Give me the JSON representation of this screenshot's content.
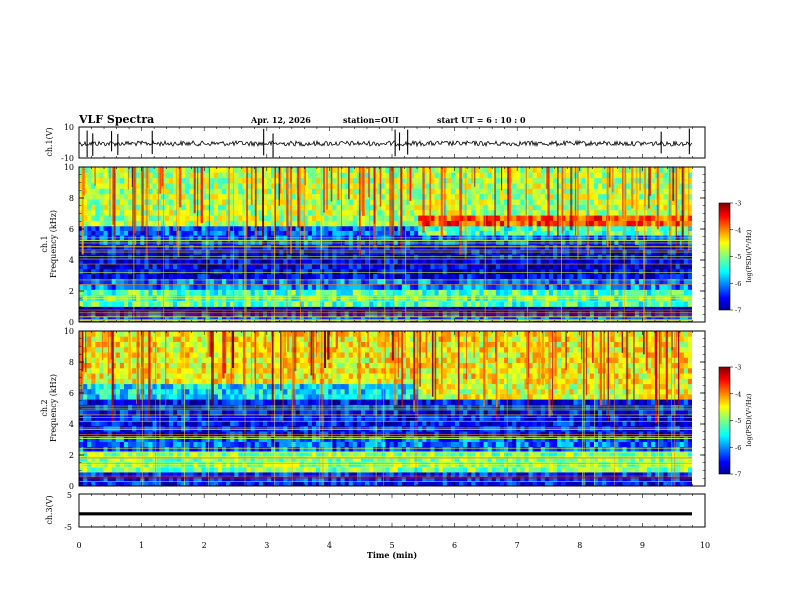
{
  "header": {
    "title": "VLF Spectra",
    "date": "Apr. 12, 2026",
    "station": "station=OUI",
    "start": "start  UT =   6 : 10 : 0"
  },
  "chart_data": [
    {
      "type": "line",
      "name": "ch1-waveform",
      "ylabel": "ch.1(V)",
      "ylim": [
        -10,
        10
      ],
      "yticks": [
        "10",
        "-10"
      ],
      "xlim": [
        0,
        10
      ],
      "description_values": "noisy waveform around 0 V with spikes",
      "spikes_min": [
        0.13,
        0.22,
        0.52,
        0.62,
        1.17,
        2.95,
        3.1,
        5.05,
        5.12,
        5.25,
        9.3,
        9.75
      ]
    },
    {
      "type": "heatmap",
      "name": "ch1-spectrogram",
      "ylabel_line1": "ch.1",
      "ylabel_line2": "Frequency (kHz)",
      "ylim": [
        0,
        10
      ],
      "yticks": [
        "0",
        "2",
        "4",
        "6",
        "8",
        "10"
      ],
      "xlim": [
        0,
        9.8
      ],
      "zlabel": "log(PSD)(V²/Hz)",
      "zlim": [
        -7,
        -3
      ],
      "colorbar_ticks": [
        "-3",
        "-4",
        "-5",
        "-6",
        "-7"
      ],
      "bands_khz": [
        {
          "f0": 0.0,
          "f1": 0.7,
          "level": -6.2
        },
        {
          "f0": 0.7,
          "f1": 1.0,
          "level": -7.0
        },
        {
          "f0": 1.0,
          "f1": 2.1,
          "level": -5.2
        },
        {
          "f0": 2.1,
          "f1": 2.8,
          "level": -6.0
        },
        {
          "f0": 2.8,
          "f1": 5.0,
          "level": -6.6
        },
        {
          "f0": 5.0,
          "f1": 6.2,
          "level": -6.2
        },
        {
          "f0": 6.2,
          "f1": 10.0,
          "level": -4.8
        }
      ]
    },
    {
      "type": "heatmap",
      "name": "ch2-spectrogram",
      "ylabel_line1": "ch.2",
      "ylabel_line2": "Frequency (kHz)",
      "ylim": [
        0,
        10
      ],
      "yticks": [
        "0",
        "2",
        "4",
        "6",
        "8",
        "10"
      ],
      "xlim": [
        0,
        9.8
      ],
      "zlabel": "log(PSD)(V²/Hz)",
      "zlim": [
        -7,
        -3
      ],
      "colorbar_ticks": [
        "-3",
        "-4",
        "-5",
        "-6",
        "-7"
      ],
      "bands_khz": [
        {
          "f0": 0.0,
          "f1": 0.9,
          "level": -6.4
        },
        {
          "f0": 0.9,
          "f1": 2.2,
          "level": -5.0
        },
        {
          "f0": 2.2,
          "f1": 3.2,
          "level": -6.1
        },
        {
          "f0": 3.2,
          "f1": 5.6,
          "level": -6.5
        },
        {
          "f0": 5.6,
          "f1": 6.6,
          "level": -5.6
        },
        {
          "f0": 6.6,
          "f1": 10.0,
          "level": -4.5
        }
      ]
    },
    {
      "type": "line",
      "name": "ch3-waveform",
      "ylabel": "ch.3(V)",
      "ylim": [
        -5,
        5
      ],
      "yticks": [
        "5",
        "-5"
      ],
      "xlim": [
        0,
        10
      ],
      "constant_value": -1.0,
      "xlabel": "Time (min)",
      "xticks": [
        "0",
        "1",
        "2",
        "3",
        "4",
        "5",
        "6",
        "7",
        "8",
        "9",
        "10"
      ]
    }
  ]
}
